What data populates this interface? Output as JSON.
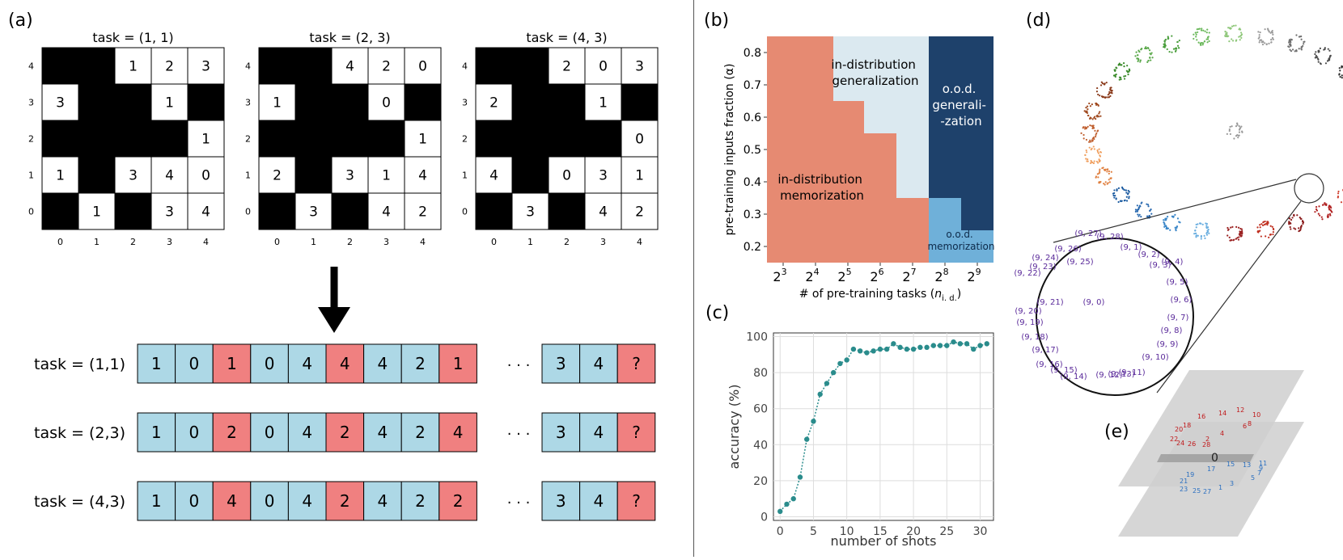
{
  "panel_labels": {
    "a": "(a)",
    "b": "(b)",
    "c": "(c)",
    "d": "(d)",
    "e": "(e)"
  },
  "grids": [
    {
      "title": "task  = (1, 1)",
      "rows": [
        [
          null,
          null,
          "1",
          "2",
          "3"
        ],
        [
          "3",
          null,
          null,
          "1",
          null
        ],
        [
          null,
          null,
          null,
          null,
          "1"
        ],
        [
          "1",
          null,
          "3",
          "4",
          "0"
        ],
        [
          null,
          "1",
          null,
          "3",
          "4"
        ]
      ]
    },
    {
      "title": "task  = (2, 3)",
      "rows": [
        [
          null,
          null,
          "4",
          "2",
          "0"
        ],
        [
          "1",
          null,
          null,
          "0",
          null
        ],
        [
          null,
          null,
          null,
          null,
          "1"
        ],
        [
          "2",
          null,
          "3",
          "1",
          "4"
        ],
        [
          null,
          "3",
          null,
          "4",
          "2"
        ]
      ]
    },
    {
      "title": "task  = (4, 3)",
      "rows": [
        [
          null,
          null,
          "2",
          "0",
          "3"
        ],
        [
          "2",
          null,
          null,
          "1",
          null
        ],
        [
          null,
          null,
          null,
          null,
          "0"
        ],
        [
          "4",
          null,
          "0",
          "3",
          "1"
        ],
        [
          null,
          "3",
          null,
          "4",
          "2"
        ]
      ]
    }
  ],
  "grid_axis": {
    "x_ticks": [
      "0",
      "1",
      "2",
      "3",
      "4"
    ],
    "y_ticks": [
      "4",
      "3",
      "2",
      "1",
      "0"
    ]
  },
  "sequences": [
    {
      "label": "task = (1,1)",
      "cells": [
        {
          "v": "1",
          "t": "x"
        },
        {
          "v": "0",
          "t": "x"
        },
        {
          "v": "1",
          "t": "y"
        },
        {
          "v": "0",
          "t": "x"
        },
        {
          "v": "4",
          "t": "x"
        },
        {
          "v": "4",
          "t": "y"
        },
        {
          "v": "4",
          "t": "x"
        },
        {
          "v": "2",
          "t": "x"
        },
        {
          "v": "1",
          "t": "y"
        }
      ],
      "tail": [
        {
          "v": "3",
          "t": "x"
        },
        {
          "v": "4",
          "t": "x"
        },
        {
          "v": "?",
          "t": "y"
        }
      ]
    },
    {
      "label": "task = (2,3)",
      "cells": [
        {
          "v": "1",
          "t": "x"
        },
        {
          "v": "0",
          "t": "x"
        },
        {
          "v": "2",
          "t": "y"
        },
        {
          "v": "0",
          "t": "x"
        },
        {
          "v": "4",
          "t": "x"
        },
        {
          "v": "2",
          "t": "y"
        },
        {
          "v": "4",
          "t": "x"
        },
        {
          "v": "2",
          "t": "x"
        },
        {
          "v": "4",
          "t": "y"
        }
      ],
      "tail": [
        {
          "v": "3",
          "t": "x"
        },
        {
          "v": "4",
          "t": "x"
        },
        {
          "v": "?",
          "t": "y"
        }
      ]
    },
    {
      "label": "task = (4,3)",
      "cells": [
        {
          "v": "1",
          "t": "x"
        },
        {
          "v": "0",
          "t": "x"
        },
        {
          "v": "4",
          "t": "y"
        },
        {
          "v": "0",
          "t": "x"
        },
        {
          "v": "4",
          "t": "x"
        },
        {
          "v": "2",
          "t": "y"
        },
        {
          "v": "4",
          "t": "x"
        },
        {
          "v": "2",
          "t": "x"
        },
        {
          "v": "2",
          "t": "y"
        }
      ],
      "tail": [
        {
          "v": "3",
          "t": "x"
        },
        {
          "v": "4",
          "t": "x"
        },
        {
          "v": "?",
          "t": "y"
        }
      ]
    }
  ],
  "ellipsis": "· · ·",
  "colors": {
    "input_cell": "#add8e6",
    "output_cell": "#f08080",
    "memorization": "#e68a72",
    "id_generalization": "#dbe9f0",
    "ood_generalization": "#1e416b",
    "ood_memorization": "#6fb0d9",
    "line": "#2a8c8c",
    "d_label": "#5a2a9a",
    "e_red": "#c0181a",
    "e_blue": "#2a6fc0"
  },
  "chart_data": [
    {
      "type": "heatmap",
      "xlabel_main": "# of pre-training tasks (",
      "xlabel_sym": "n",
      "xlabel_sub": "i. d.",
      "xlabel_close": ")",
      "ylabel": "pre-training inputs fraction (α)",
      "x_ticks": [
        {
          "base": "2",
          "exp": "3"
        },
        {
          "base": "2",
          "exp": "4"
        },
        {
          "base": "2",
          "exp": "5"
        },
        {
          "base": "2",
          "exp": "6"
        },
        {
          "base": "2",
          "exp": "7"
        },
        {
          "base": "2",
          "exp": "8"
        },
        {
          "base": "2",
          "exp": "9"
        }
      ],
      "x_exponents": [
        3,
        4,
        5,
        6,
        7,
        8,
        9
      ],
      "y_ticks": [
        "0.8",
        "0.7",
        "0.6",
        "0.5",
        "0.4",
        "0.3",
        "0.2"
      ],
      "y_tick_values": [
        0.8,
        0.7,
        0.6,
        0.5,
        0.4,
        0.3,
        0.2
      ],
      "regions": {
        "id_memorization": "in-distribution\nmemorization",
        "id_generalization": "in-distribution\ngeneralization",
        "ood_generalization": "o.o.d.\ngenerali-\n-zation",
        "ood_memorization": "o.o.d.\nmemorization"
      }
    },
    {
      "type": "line",
      "xlabel": "number of shots",
      "ylabel": "accuracy (%)",
      "xlim": [
        0,
        31
      ],
      "ylim": [
        0,
        100
      ],
      "x_ticks": [
        "0",
        "5",
        "10",
        "15",
        "20",
        "25",
        "30"
      ],
      "y_ticks": [
        "0",
        "20",
        "40",
        "60",
        "80",
        "100"
      ],
      "grid": true,
      "x": [
        0,
        1,
        2,
        3,
        4,
        5,
        6,
        7,
        8,
        9,
        10,
        11,
        12,
        13,
        14,
        15,
        16,
        17,
        18,
        19,
        20,
        21,
        22,
        23,
        24,
        25,
        26,
        27,
        28,
        29,
        30,
        31
      ],
      "y": [
        3,
        7,
        10,
        22,
        43,
        53,
        68,
        74,
        80,
        85,
        87,
        93,
        92,
        91,
        92,
        93,
        93,
        96,
        94,
        93,
        93,
        94,
        94,
        95,
        95,
        95,
        97,
        96,
        96,
        93,
        95,
        96
      ]
    }
  ],
  "zoom_labels": [
    "(9, 27)",
    "(9, 28)",
    "(9, 26)",
    "(9, 1)",
    "(9, 24)",
    "(9, 25)",
    "(9, 2)",
    "(9, 4)",
    "(9, 23)",
    "(9, 3)",
    "(9, 22)",
    "(9, 5)",
    "(9, 21)",
    "(9, 0)",
    "(9, 6)",
    "(9, 20)",
    "(9, 7)",
    "(9, 19)",
    "(9, 8)",
    "(9, 18)",
    "(9, 9)",
    "(9, 17)",
    "(9, 10)",
    "(9, 16)",
    "(9, 15)",
    "(9, 11)",
    "(9, 14)",
    "(9, 13)",
    "(9, 12)"
  ],
  "plane_top_labels": [
    "16",
    "14",
    "12",
    "10",
    "8",
    "6",
    "20",
    "18",
    "2",
    "4",
    "22",
    "24",
    "26",
    "28"
  ],
  "plane_center": "0",
  "plane_bottom_labels": [
    "15",
    "13",
    "11",
    "9",
    "17",
    "7",
    "19",
    "5",
    "21",
    "3",
    "23",
    "25",
    "27",
    "1"
  ]
}
